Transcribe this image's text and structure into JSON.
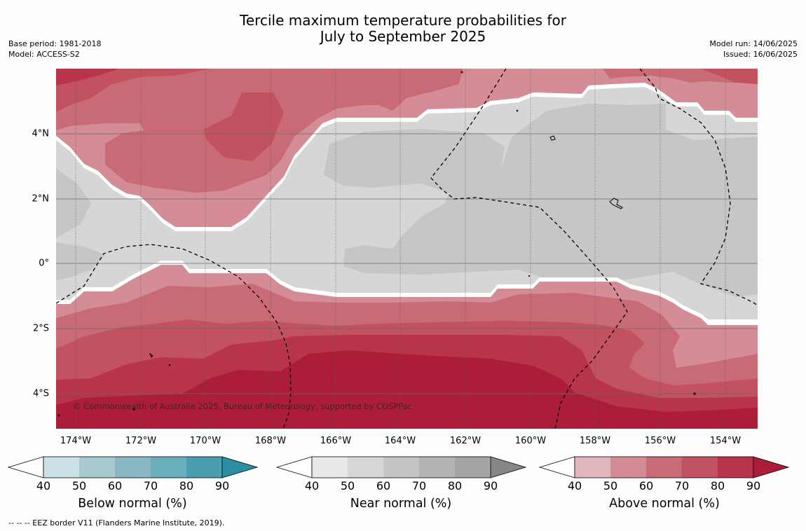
{
  "title": {
    "line1": "Tercile maximum temperature probabilities for",
    "line2": "July to September 2025"
  },
  "meta_left": {
    "base_period": "Base period: 1981-2018",
    "model": "Model: ACCESS-S2"
  },
  "meta_right": {
    "model_run": "Model run: 14/06/2025",
    "issued": "Issued: 16/06/2025"
  },
  "map": {
    "lon_labels": [
      "174°W",
      "172°W",
      "170°W",
      "168°W",
      "166°W",
      "164°W",
      "162°W",
      "160°W",
      "158°W",
      "156°W",
      "154°W"
    ],
    "lat_labels": [
      "4°N",
      "2°N",
      "0°",
      "2°S",
      "4°S"
    ],
    "copyright": "© Commonwealth of Australia 2025, Bureau of Meteorology, supported by COSPPac"
  },
  "legends": [
    {
      "title": "Below normal (%)",
      "ticks": [
        "40",
        "50",
        "60",
        "70",
        "80",
        "90"
      ],
      "colors": [
        "#c9e1e7",
        "#a8c9cd",
        "#89b8c4",
        "#6aaebb",
        "#4a9eaf",
        "#2b8ea3"
      ]
    },
    {
      "title": "Near normal (%)",
      "ticks": [
        "40",
        "50",
        "60",
        "70",
        "80",
        "90"
      ],
      "colors": [
        "#e8e8e8",
        "#d7d7d7",
        "#c5c5c5",
        "#b4b4b4",
        "#a5a5a5",
        "#868686"
      ]
    },
    {
      "title": "Above normal (%)",
      "ticks": [
        "40",
        "50",
        "60",
        "70",
        "80",
        "90"
      ],
      "colors": [
        "#e1b7bd",
        "#d48c96",
        "#c96b76",
        "#c2525f",
        "#b8344a",
        "#ac1d3a"
      ]
    }
  ],
  "footer": "--  --  -- EEZ border V11 (Flanders Marine Institute, 2019)."
}
